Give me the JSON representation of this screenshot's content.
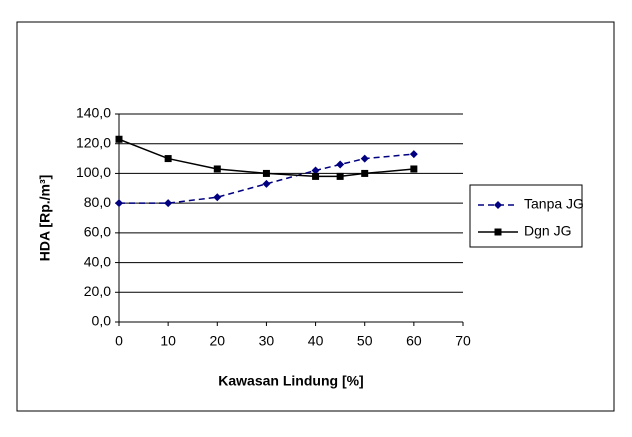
{
  "chart_data": {
    "type": "line",
    "x_label": "Kawasan Lindung [%]",
    "y_label": "HDA [Rp./m³]",
    "xlim": [
      0,
      70
    ],
    "xticks": [
      0,
      10,
      20,
      30,
      40,
      50,
      60,
      70
    ],
    "ylim": [
      0,
      140
    ],
    "yticks": [
      {
        "value": 0,
        "label": "0,0"
      },
      {
        "value": 20,
        "label": "20,0"
      },
      {
        "value": 40,
        "label": "40,0"
      },
      {
        "value": 60,
        "label": "60,0"
      },
      {
        "value": 80,
        "label": "80,0"
      },
      {
        "value": 100,
        "label": "100,0"
      },
      {
        "value": 120,
        "label": "120,0"
      },
      {
        "value": 140,
        "label": "140,0"
      }
    ],
    "grid": true,
    "legend": "right",
    "x": [
      0,
      10,
      20,
      30,
      40,
      45,
      50,
      60
    ],
    "series": [
      {
        "name": "Tanpa JG",
        "color": "#000080",
        "dashed": true,
        "marker": "diamond",
        "values": [
          80,
          80,
          84,
          93,
          102,
          106,
          110,
          113
        ]
      },
      {
        "name": "Dgn JG",
        "color": "#000000",
        "dashed": false,
        "marker": "square",
        "values": [
          123,
          110,
          103,
          100,
          98,
          98,
          100,
          103
        ]
      }
    ]
  }
}
